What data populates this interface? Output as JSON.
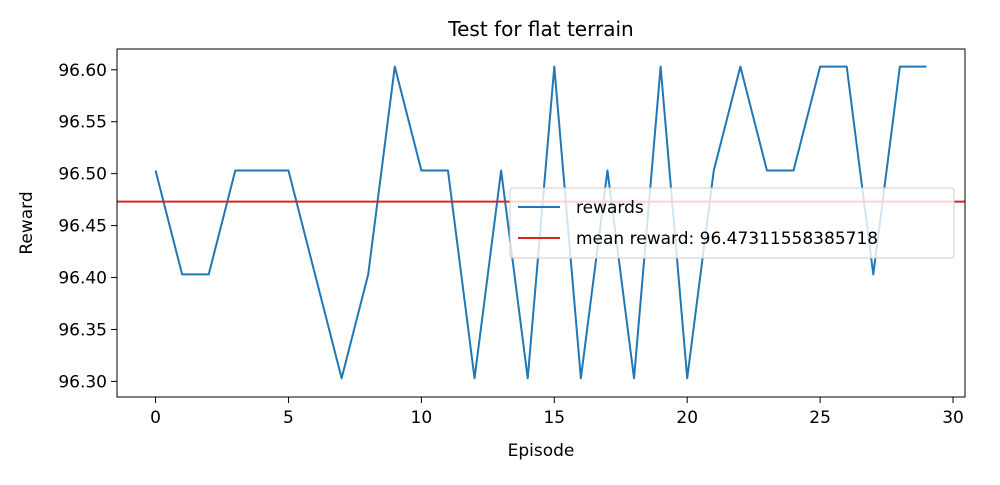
{
  "chart_data": {
    "type": "line",
    "title": "Test for flat terrain",
    "xlabel": "Episode",
    "ylabel": "Reward",
    "xlim": [
      -1.45,
      30.45
    ],
    "ylim": [
      96.285,
      96.62
    ],
    "xticks": [
      0,
      5,
      10,
      15,
      20,
      25,
      30
    ],
    "yticks": [
      96.3,
      96.35,
      96.4,
      96.45,
      96.5,
      96.55,
      96.6
    ],
    "ytick_labels": [
      "96.30",
      "96.35",
      "96.40",
      "96.45",
      "96.50",
      "96.55",
      "96.60"
    ],
    "grid": false,
    "legend_position": "center-right",
    "series": [
      {
        "name": "rewards",
        "color": "#1f77b4",
        "x": [
          0,
          1,
          2,
          3,
          4,
          5,
          6,
          7,
          8,
          9,
          10,
          11,
          12,
          13,
          14,
          15,
          16,
          17,
          18,
          19,
          20,
          21,
          22,
          23,
          24,
          25,
          26,
          27,
          28,
          29
        ],
        "values": [
          96.503,
          96.403,
          96.403,
          96.503,
          96.503,
          96.503,
          96.403,
          96.303,
          96.403,
          96.603,
          96.503,
          96.503,
          96.303,
          96.503,
          96.303,
          96.603,
          96.303,
          96.503,
          96.303,
          96.603,
          96.303,
          96.503,
          96.603,
          96.503,
          96.503,
          96.603,
          96.603,
          96.403,
          96.603,
          96.603
        ]
      }
    ],
    "reference_lines": [
      {
        "name": "mean reward: 96.47311558385718",
        "orientation": "horizontal",
        "value": 96.47311558385718,
        "color": "#d62728"
      }
    ]
  }
}
